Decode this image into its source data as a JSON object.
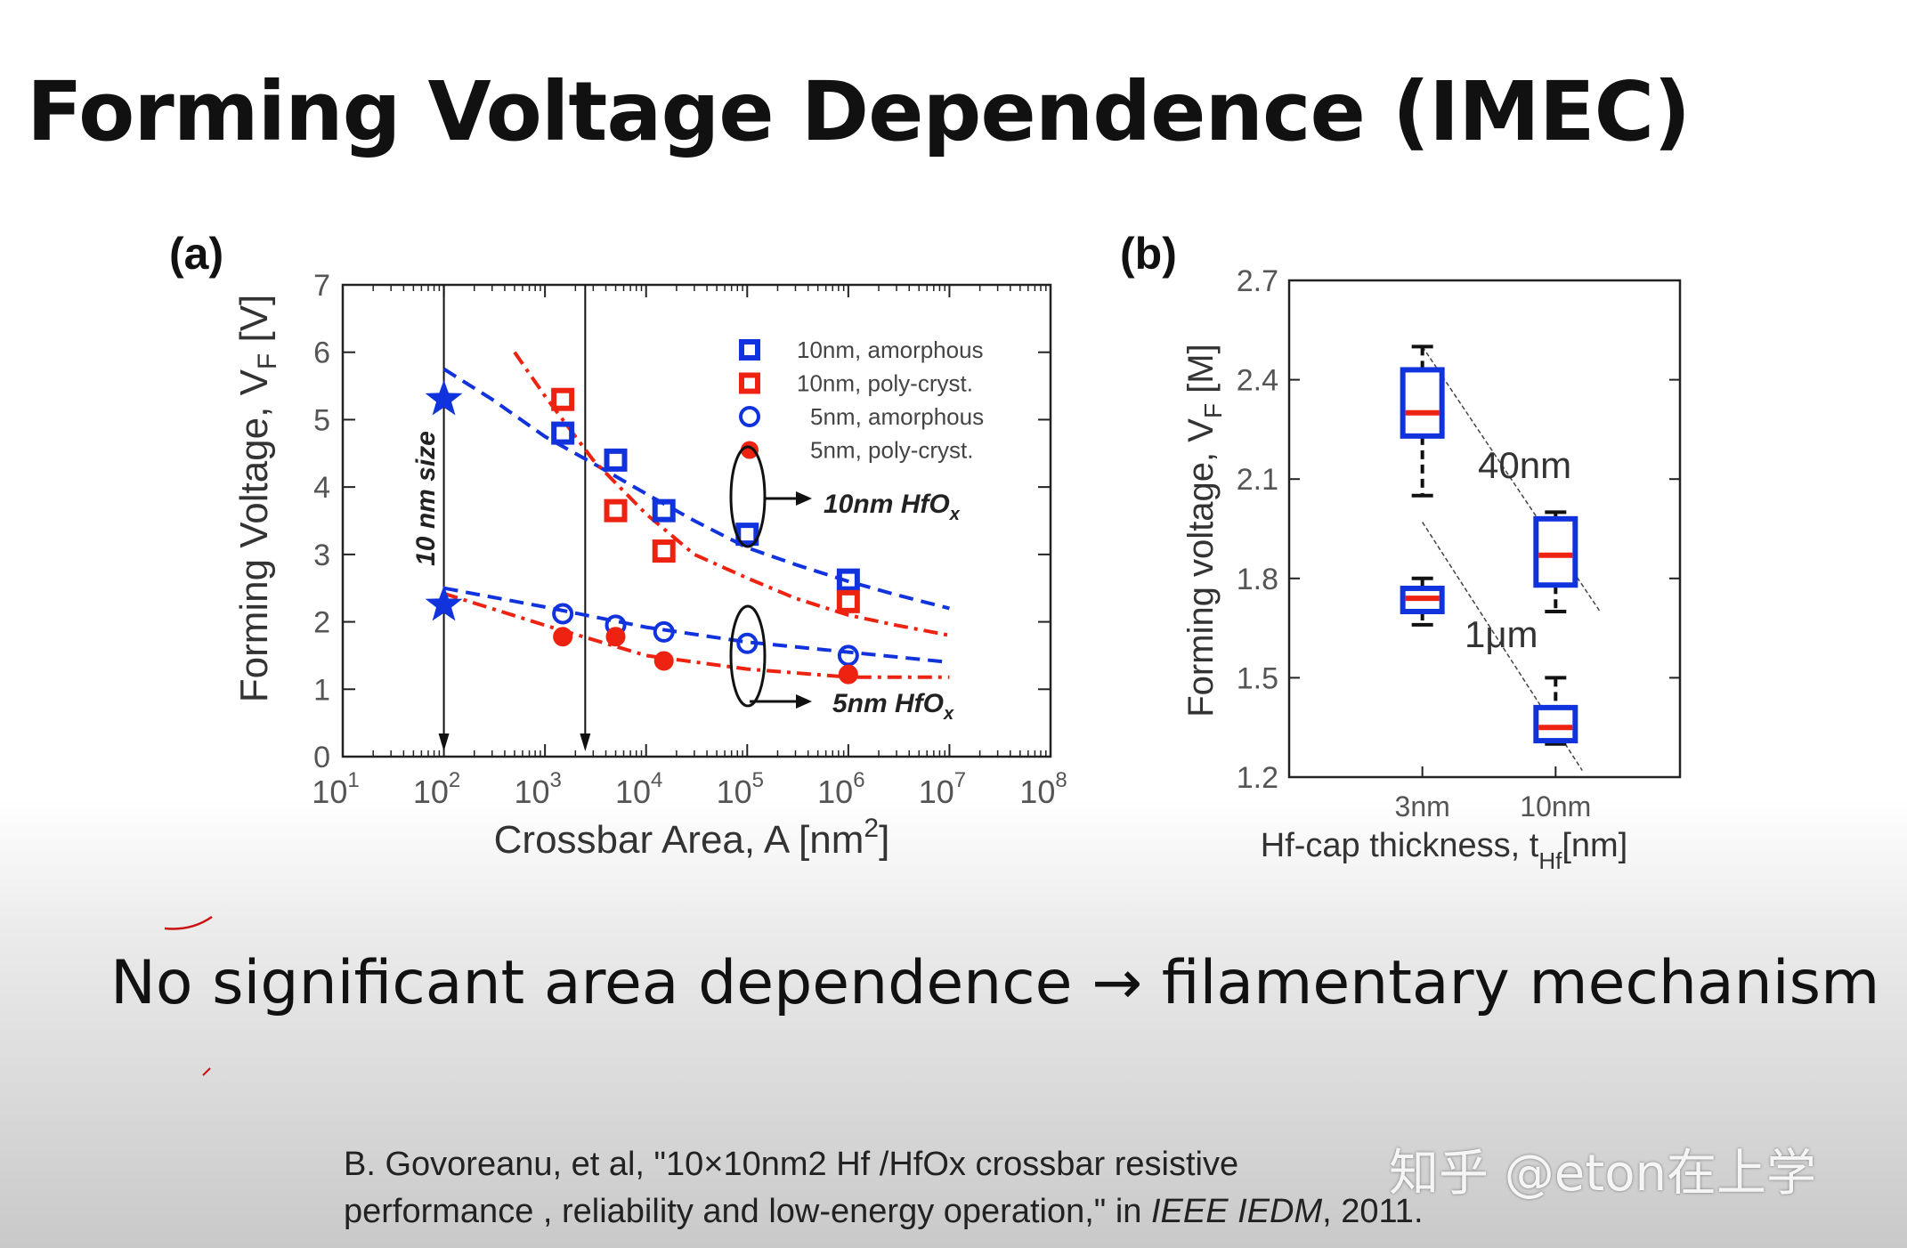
{
  "slide": {
    "title": "Forming Voltage Dependence (IMEC)",
    "conclusion": "No significant area dependence → filamentary mechanism",
    "citation_line1": "B. Govoreanu, et al, \"10×10nm2 Hf /HfOx crossbar resistive",
    "citation_line2_pre": "performance , reliability and low-energy operation,\" in ",
    "citation_journal": "IEEE IEDM",
    "citation_line2_post": ", 2011.",
    "watermark": "知乎 @eton在上学"
  },
  "colors": {
    "blue": "#1133dd",
    "red": "#ee2211",
    "ink": "#111111"
  },
  "chart_data": [
    {
      "type": "scatter",
      "panel_label": "(a)",
      "xscale": "log",
      "xlim_exp": [
        1,
        8
      ],
      "ylim": [
        0,
        7
      ],
      "xtick_base": "10",
      "xtick_exponents": [
        "1",
        "2",
        "3",
        "4",
        "5",
        "6",
        "7",
        "8"
      ],
      "yticks": [
        "0",
        "1",
        "2",
        "3",
        "4",
        "5",
        "6",
        "7"
      ],
      "ylabel": "Forming Voltage, V",
      "ylabel_sub": "F",
      "ylabel_unit": " [V]",
      "xlabel": "Crossbar Area, A [nm",
      "xlabel_sup": "2",
      "xlabel_end": "]",
      "legend": [
        {
          "label": "10nm, amorphous",
          "marker": "square",
          "color": "blue"
        },
        {
          "label": "10nm, poly-cryst.",
          "marker": "square",
          "color": "red"
        },
        {
          "label": "5nm, amorphous",
          "marker": "circle",
          "color": "blue"
        },
        {
          "label": "5nm, poly-cryst.",
          "marker": "circle",
          "color": "red"
        }
      ],
      "series": [
        {
          "name": "10nm, amorphous",
          "marker": "square",
          "color": "blue",
          "points": [
            [
              1500,
              4.8
            ],
            [
              5000,
              4.4
            ],
            [
              15000,
              3.65
            ],
            [
              100000,
              3.3
            ],
            [
              1000000,
              2.62
            ]
          ]
        },
        {
          "name": "10nm, poly-cryst.",
          "marker": "square",
          "color": "red",
          "points": [
            [
              1500,
              5.3
            ],
            [
              5000,
              3.65
            ],
            [
              15000,
              3.05
            ],
            [
              1000000,
              2.3
            ]
          ]
        },
        {
          "name": "5nm, amorphous",
          "marker": "circle",
          "color": "blue",
          "points": [
            [
              1500,
              2.12
            ],
            [
              5000,
              1.95
            ],
            [
              15000,
              1.85
            ],
            [
              100000,
              1.68
            ],
            [
              1000000,
              1.5
            ]
          ]
        },
        {
          "name": "5nm, poly-cryst.",
          "marker": "circle",
          "color": "red",
          "points": [
            [
              1500,
              1.78
            ],
            [
              5000,
              1.78
            ],
            [
              15000,
              1.42
            ],
            [
              1000000,
              1.22
            ]
          ]
        }
      ],
      "stars": [
        [
          100,
          5.3
        ],
        [
          100,
          2.25
        ]
      ],
      "fits": [
        {
          "color": "blue",
          "style": "dash",
          "points": [
            [
              100,
              5.75
            ],
            [
              300,
              5.3
            ],
            [
              1000,
              4.75
            ],
            [
              3000,
              4.35
            ],
            [
              10000,
              3.9
            ],
            [
              30000,
              3.5
            ],
            [
              100000,
              3.1
            ],
            [
              300000,
              2.85
            ],
            [
              1000000,
              2.6
            ],
            [
              3000000,
              2.4
            ],
            [
              10000000,
              2.2
            ]
          ]
        },
        {
          "color": "red",
          "style": "dashdot",
          "points": [
            [
              500,
              6.0
            ],
            [
              1000,
              5.35
            ],
            [
              3000,
              4.4
            ],
            [
              10000,
              3.6
            ],
            [
              30000,
              3.0
            ],
            [
              100000,
              2.65
            ],
            [
              300000,
              2.35
            ],
            [
              1000000,
              2.1
            ],
            [
              3000000,
              1.95
            ],
            [
              10000000,
              1.8
            ]
          ]
        },
        {
          "color": "blue",
          "style": "dash",
          "points": [
            [
              100,
              2.5
            ],
            [
              1000,
              2.22
            ],
            [
              10000,
              1.92
            ],
            [
              100000,
              1.7
            ],
            [
              1000000,
              1.55
            ],
            [
              10000000,
              1.4
            ]
          ]
        },
        {
          "color": "red",
          "style": "dashdot",
          "points": [
            [
              100,
              2.42
            ],
            [
              1000,
              1.95
            ],
            [
              10000,
              1.5
            ],
            [
              100000,
              1.3
            ],
            [
              1000000,
              1.18
            ],
            [
              10000000,
              1.18
            ]
          ]
        }
      ],
      "annotations": {
        "vertical_text": "10 nm size",
        "upper_group": "10nm HfO",
        "lower_group": "5nm HfO",
        "group_sub": "x",
        "arrow_x": [
          100,
          2500
        ]
      }
    },
    {
      "type": "box",
      "panel_label": "(b)",
      "ylim": [
        1.2,
        2.7
      ],
      "yticks": [
        "1.2",
        "1.5",
        "1.8",
        "2.1",
        "2.4",
        "2.7"
      ],
      "categories": [
        "3nm",
        "10nm"
      ],
      "ylabel": "Forming voltage, V",
      "ylabel_sub": "F",
      "ylabel_unit": " [M]",
      "xlabel": "Hf-cap thickness, t",
      "xlabel_sub": "Hf",
      "xlabel_end": "[nm]",
      "groups": [
        {
          "label": "40nm",
          "boxes": [
            {
              "category": "3nm",
              "whisker_low": 2.05,
              "q1": 2.23,
              "median": 2.3,
              "q3": 2.43,
              "whisker_high": 2.5
            },
            {
              "category": "10nm",
              "whisker_low": 1.7,
              "q1": 1.78,
              "median": 1.87,
              "q3": 1.98,
              "whisker_high": 2.0
            }
          ],
          "trend": [
            [
              1.5,
              2.5
            ],
            [
              3.5,
              1.7
            ]
          ]
        },
        {
          "label": "1μm",
          "boxes": [
            {
              "category": "3nm",
              "whisker_low": 1.66,
              "q1": 1.7,
              "median": 1.74,
              "q3": 1.77,
              "whisker_high": 1.8
            },
            {
              "category": "10nm",
              "whisker_low": 1.3,
              "q1": 1.31,
              "median": 1.35,
              "q3": 1.41,
              "whisker_high": 1.5
            }
          ],
          "trend": [
            [
              1.5,
              1.97
            ],
            [
              3.3,
              1.22
            ]
          ]
        }
      ]
    }
  ]
}
